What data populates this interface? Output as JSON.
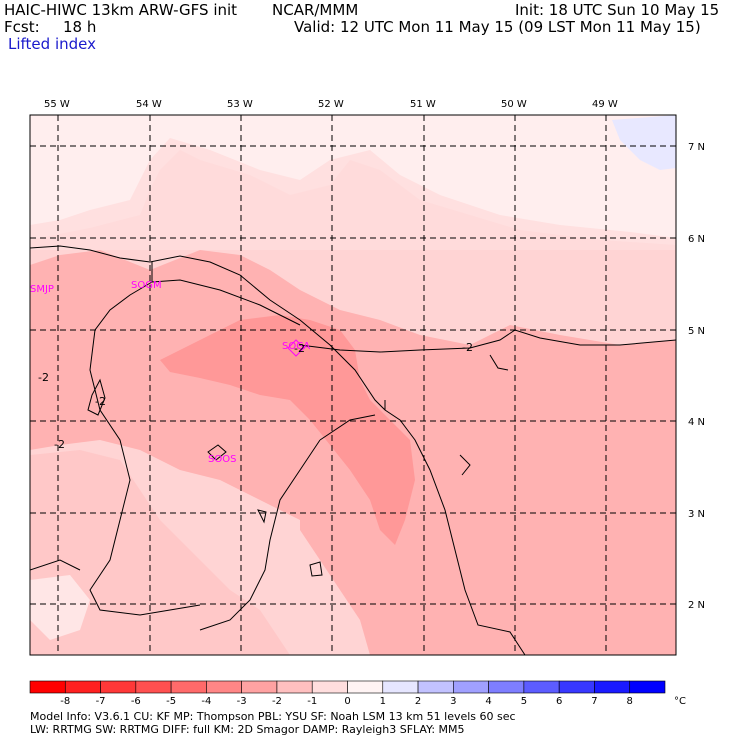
{
  "header": {
    "model_title": "HAIC-HIWC 13km ARW-GFS init",
    "org": "NCAR/MMM",
    "init_time": "Init: 18 UTC Sun 10 May 15",
    "fcst_label": "Fcst:",
    "fcst_value": "18 h",
    "valid_time": "Valid: 12 UTC Mon 11 May 15 (09 LST Mon 11 May 15)",
    "field_name": "Lifted index"
  },
  "map": {
    "lon_labels": [
      "55 W",
      "54 W",
      "53 W",
      "52 W",
      "51 W",
      "50 W",
      "49 W"
    ],
    "lat_labels": [
      "7 N",
      "6 N",
      "5 N",
      "4 N",
      "3 N",
      "2 N"
    ],
    "stations": [
      "SMJP",
      "SOCA",
      "SOGM",
      "SOOS"
    ],
    "contour_labels": [
      "-2",
      "-2",
      "-2",
      "-2",
      "-2"
    ]
  },
  "colorbar": {
    "ticks": [
      "-8",
      "-7",
      "-6",
      "-5",
      "-4",
      "-3",
      "-2",
      "-1",
      "0",
      "1",
      "2",
      "3",
      "4",
      "5",
      "6",
      "7",
      "8"
    ],
    "unit": "°C",
    "colors": [
      "#ff0000",
      "#ff2020",
      "#ff3838",
      "#ff5050",
      "#ff6a6a",
      "#ff8686",
      "#ffa2a2",
      "#ffc0c0",
      "#ffdede",
      "#fff4f4",
      "#e6e6ff",
      "#c2c2ff",
      "#a0a0ff",
      "#7e7eff",
      "#5c5cff",
      "#3838ff",
      "#1a1aff",
      "#0000ff"
    ]
  },
  "footer": {
    "line1": "Model Info: V3.6.1     CU: KF        MP: Thompson      PBL: YSU         SF: Noah LSM      13 km    51 levels   60 sec",
    "line2": "                    LW: RRTMG     SW: RRTMG   DIFF: full    KM: 2D Smagor  DAMP: Rayleigh3   SFLAY: MM5"
  }
}
